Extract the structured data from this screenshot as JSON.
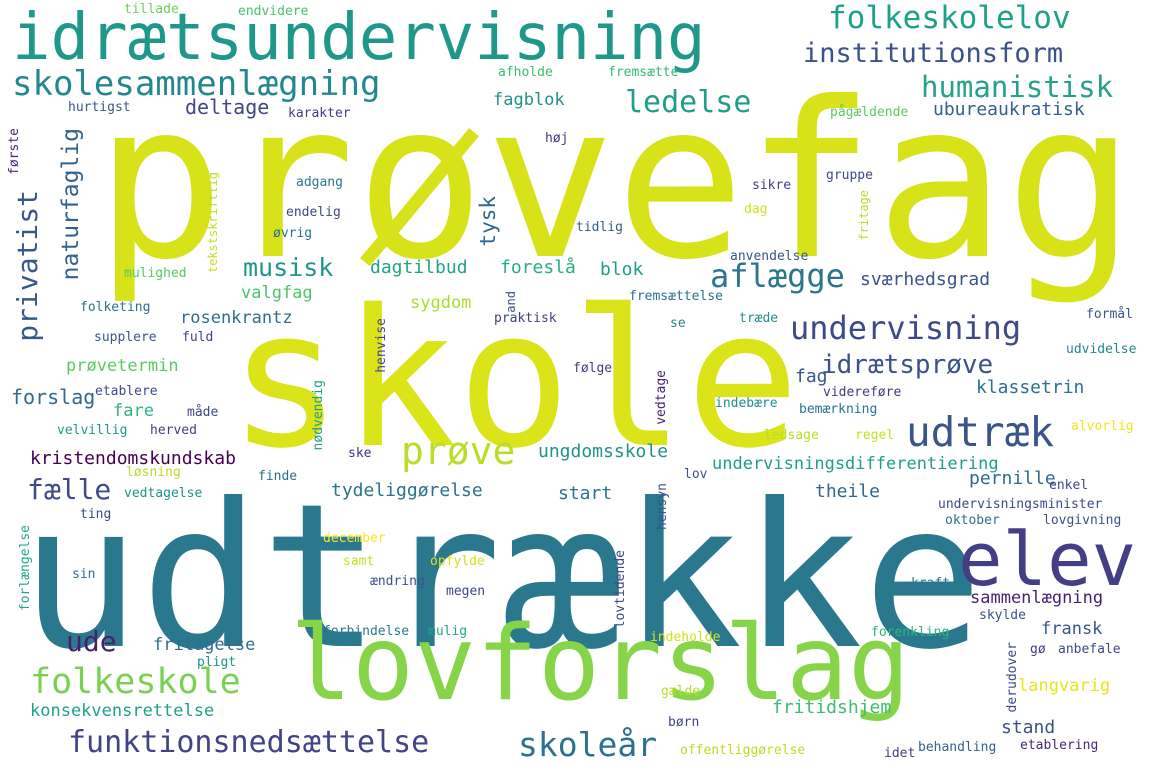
{
  "palette": [
    "#d7e219",
    "#86d549",
    "#2a788e",
    "#21918c",
    "#3b528b",
    "#433e85",
    "#482173",
    "#1fa188",
    "#35b779",
    "#b5de2b",
    "#fde725"
  ],
  "words": [
    {
      "text": "prøvefag",
      "color": "#d7e219"
    },
    {
      "text": "skole",
      "color": "#dbe319"
    },
    {
      "text": "udtrække",
      "color": "#2a788e"
    },
    {
      "text": "lovforslag",
      "color": "#86d549"
    },
    {
      "text": "idrætsundervisning",
      "color": "#1f988b"
    },
    {
      "text": "elev",
      "color": "#433e85"
    },
    {
      "text": "skolesammenlægning",
      "color": "#23888e"
    },
    {
      "text": "folkeskolelov",
      "color": "#1fa188"
    },
    {
      "text": "institutionsform",
      "color": "#3b528b"
    },
    {
      "text": "humanistisk",
      "color": "#25a18e"
    },
    {
      "text": "ledelse",
      "color": "#1f9e89"
    },
    {
      "text": "udtræk",
      "color": "#3a548c"
    },
    {
      "text": "undervisning",
      "color": "#3e4989"
    },
    {
      "text": "funktionsnedsættelse",
      "color": "#414487"
    },
    {
      "text": "folkeskole",
      "color": "#7ad151"
    },
    {
      "text": "skoleår",
      "color": "#2c728e"
    },
    {
      "text": "prøve",
      "color": "#b8de29"
    },
    {
      "text": "aflægge",
      "color": "#2b758e"
    },
    {
      "text": "idrætsprøve",
      "color": "#3b528b"
    },
    {
      "text": "musisk",
      "color": "#1f968b"
    },
    {
      "text": "privatist",
      "color": "#38588c"
    },
    {
      "text": "naturfaglig",
      "color": "#33638d"
    },
    {
      "text": "fælle",
      "color": "#3e4a89"
    },
    {
      "text": "ude",
      "color": "#481f70"
    },
    {
      "text": "fagblok",
      "color": "#20928c"
    },
    {
      "text": "deltage",
      "color": "#3f4788"
    },
    {
      "text": "ubureaukratisk",
      "color": "#355f8d"
    },
    {
      "text": "tillade",
      "color": "#6ece58"
    },
    {
      "text": "endvidere",
      "color": "#4ac16d"
    },
    {
      "text": "afholde",
      "color": "#3fbc73"
    },
    {
      "text": "fremsætte",
      "color": "#35b779"
    },
    {
      "text": "hurtigst",
      "color": "#375a8c"
    },
    {
      "text": "karakter",
      "color": "#433e85"
    },
    {
      "text": "pågældende",
      "color": "#5ec962"
    },
    {
      "text": "første",
      "color": "#482878"
    },
    {
      "text": "høj",
      "color": "#46337f"
    },
    {
      "text": "tekstskriftlig",
      "color": "#c2df23"
    },
    {
      "text": "adgang",
      "color": "#2a788e"
    },
    {
      "text": "endelig",
      "color": "#3f4889"
    },
    {
      "text": "øvrig",
      "color": "#2c718e"
    },
    {
      "text": "tidlig",
      "color": "#365c8d"
    },
    {
      "text": "sikre",
      "color": "#433e85"
    },
    {
      "text": "dag",
      "color": "#d0e11c"
    },
    {
      "text": "gruppe",
      "color": "#3e4a89"
    },
    {
      "text": "fritage",
      "color": "#b5de2b"
    },
    {
      "text": "tysk",
      "color": "#31688e"
    },
    {
      "text": "dagtilbud",
      "color": "#20a386"
    },
    {
      "text": "foreslå",
      "color": "#29af7f"
    },
    {
      "text": "blok",
      "color": "#1f9e89"
    },
    {
      "text": "mulighed",
      "color": "#5ac864"
    },
    {
      "text": "valgfag",
      "color": "#4ec36b"
    },
    {
      "text": "anvendelse",
      "color": "#3b528b"
    },
    {
      "text": "sværhedsgrad",
      "color": "#3a548c"
    },
    {
      "text": "sygdom",
      "color": "#addc30"
    },
    {
      "text": "folketing",
      "color": "#2d708e"
    },
    {
      "text": "rosenkrantz",
      "color": "#2e6e8e"
    },
    {
      "text": "and",
      "color": "#3b528b"
    },
    {
      "text": "fremsættelse",
      "color": "#2c728e"
    },
    {
      "text": "supplere",
      "color": "#39568c"
    },
    {
      "text": "fuld",
      "color": "#424086"
    },
    {
      "text": "henvise",
      "color": "#3f4788"
    },
    {
      "text": "praktisk",
      "color": "#423f85"
    },
    {
      "text": "træde",
      "color": "#21918c"
    },
    {
      "text": "se",
      "color": "#24868e"
    },
    {
      "text": "formål",
      "color": "#3a548c"
    },
    {
      "text": "prøvetermin",
      "color": "#5ec962"
    },
    {
      "text": "udvidelse",
      "color": "#23888e"
    },
    {
      "text": "følge",
      "color": "#433e85"
    },
    {
      "text": "nødvendig",
      "color": "#1fa088"
    },
    {
      "text": "vedtage",
      "color": "#482173"
    },
    {
      "text": "fag",
      "color": "#39568c"
    },
    {
      "text": "klassetrin",
      "color": "#2d708e"
    },
    {
      "text": "forslag",
      "color": "#31688e"
    },
    {
      "text": "etablere",
      "color": "#3e4989"
    },
    {
      "text": "fare",
      "color": "#2fb47c"
    },
    {
      "text": "måde",
      "color": "#3f4889"
    },
    {
      "text": "indebære",
      "color": "#21918c"
    },
    {
      "text": "videreføre",
      "color": "#453882"
    },
    {
      "text": "bemærkning",
      "color": "#2c738e"
    },
    {
      "text": "velvillig",
      "color": "#1f9a8a"
    },
    {
      "text": "herved",
      "color": "#433e85"
    },
    {
      "text": "ledsage",
      "color": "#b8de29"
    },
    {
      "text": "regel",
      "color": "#c8e020"
    },
    {
      "text": "alvorlig",
      "color": "#f1e51d"
    },
    {
      "text": "kristendomskundskab",
      "color": "#440154"
    },
    {
      "text": "ske",
      "color": "#46337f"
    },
    {
      "text": "ungdomsskole",
      "color": "#21918c"
    },
    {
      "text": "undervisningsdifferentiering",
      "color": "#1f9e89"
    },
    {
      "text": "løsning",
      "color": "#b8de29"
    },
    {
      "text": "finde",
      "color": "#2f6c8e"
    },
    {
      "text": "lov",
      "color": "#3b528b"
    },
    {
      "text": "pernille",
      "color": "#2f6b8e"
    },
    {
      "text": "enkel",
      "color": "#404588"
    },
    {
      "text": "vedtagelse",
      "color": "#20928c"
    },
    {
      "text": "tydeliggørelse",
      "color": "#2c718e"
    },
    {
      "text": "start",
      "color": "#2c728e"
    },
    {
      "text": "theile",
      "color": "#31688e"
    },
    {
      "text": "hensyn",
      "color": "#3d4d8a"
    },
    {
      "text": "undervisningsminister",
      "color": "#3e4989"
    },
    {
      "text": "ting",
      "color": "#3e4a89"
    },
    {
      "text": "oktober",
      "color": "#2d708e"
    },
    {
      "text": "lovgivning",
      "color": "#3b528b"
    },
    {
      "text": "forlængelse",
      "color": "#22a785"
    },
    {
      "text": "december",
      "color": "#fde725"
    },
    {
      "text": "samt",
      "color": "#c8e020"
    },
    {
      "text": "opfylde",
      "color": "#d8e219"
    },
    {
      "text": "sin",
      "color": "#2c718e"
    },
    {
      "text": "ændring",
      "color": "#3b528b"
    },
    {
      "text": "megen",
      "color": "#3f4889"
    },
    {
      "text": "lovtidende",
      "color": "#3f4889"
    },
    {
      "text": "kraft",
      "color": "#2a768e"
    },
    {
      "text": "sammenlægning",
      "color": "#482173"
    },
    {
      "text": "skylde",
      "color": "#3b528b"
    },
    {
      "text": "fransk",
      "color": "#39568c"
    },
    {
      "text": "forbindelse",
      "color": "#2a788e"
    },
    {
      "text": "mulig",
      "color": "#22a785"
    },
    {
      "text": "fritagelse",
      "color": "#2e6e8e"
    },
    {
      "text": "indeholde",
      "color": "#d2e21b"
    },
    {
      "text": "forenkling",
      "color": "#2fb47c"
    },
    {
      "text": "derudover",
      "color": "#3f4889"
    },
    {
      "text": "gø",
      "color": "#423f85"
    },
    {
      "text": "anbefale",
      "color": "#3e4a89"
    },
    {
      "text": "pligt",
      "color": "#20928c"
    },
    {
      "text": "langvarig",
      "color": "#e7e419"
    },
    {
      "text": "konsekvensrettelse",
      "color": "#1fa188"
    },
    {
      "text": "gælde",
      "color": "#b5de2b"
    },
    {
      "text": "fritidshjem",
      "color": "#3dbc74"
    },
    {
      "text": "stand",
      "color": "#3b528b"
    },
    {
      "text": "børn",
      "color": "#3e4989"
    },
    {
      "text": "offentliggørelse",
      "color": "#b8de29"
    },
    {
      "text": "idet",
      "color": "#433e85"
    },
    {
      "text": "behandling",
      "color": "#35608d"
    },
    {
      "text": "etablering",
      "color": "#482878"
    }
  ]
}
